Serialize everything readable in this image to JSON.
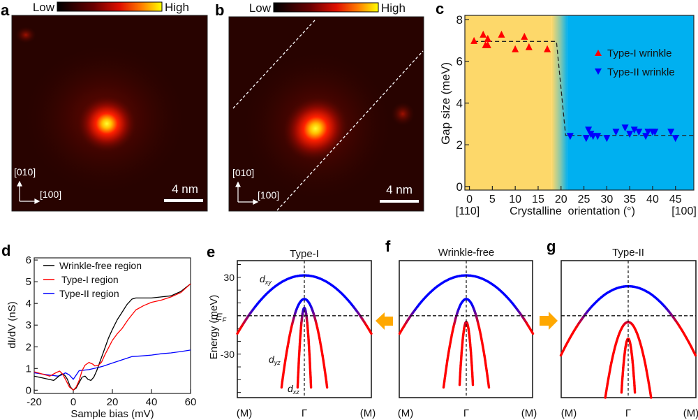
{
  "panels": {
    "a": {
      "letter": "a",
      "colorbar_low": "Low",
      "colorbar_high": "High",
      "axis_y": "[010]",
      "axis_x": "[100]",
      "scale_bar": "4 nm"
    },
    "b": {
      "letter": "b",
      "colorbar_low": "Low",
      "colorbar_high": "High",
      "axis_y": "[010]",
      "axis_x": "[100]",
      "scale_bar": "4 nm"
    },
    "c": {
      "letter": "c",
      "x_left_label": "[110]",
      "x_right_label": "[100]"
    },
    "d": {
      "letter": "d"
    },
    "e": {
      "letter": "e",
      "title": "Type-I",
      "ylabel": "Energy (meV)",
      "ef_label": "E",
      "ef_sub": "F",
      "ytick_top": "30",
      "ytick_bottom": "-30",
      "band_labels": {
        "dxy": "d",
        "dxy_sub": "xy",
        "dyz": "d",
        "dyz_sub": "yz",
        "dxz": "d",
        "dxz_sub": "xz"
      },
      "x_labels": [
        "(M)",
        "Γ",
        "(M)"
      ]
    },
    "f": {
      "letter": "f",
      "title": "Wrinkle-free",
      "x_labels": [
        "(M)",
        "Γ",
        "(M)"
      ]
    },
    "g": {
      "letter": "g",
      "title": "Type-II",
      "x_labels": [
        "(M)",
        "Γ",
        "(M)"
      ]
    }
  },
  "colors": {
    "type1": "#ff0000",
    "type2": "#0000ff",
    "wrinkle_free": "#000000",
    "region_type1_bg": "#fdd86a",
    "region_type2_bg": "#00b0f0",
    "arrow": "#ffa800",
    "band_hole": "#0000ff",
    "band_electron": "#ff0000"
  },
  "chart_data": [
    {
      "id": "c",
      "type": "scatter",
      "title": "",
      "xlabel": "Crystalline  orientation (°)",
      "ylabel": "Gap size (meV)",
      "xlim": [
        -1,
        49
      ],
      "ylim": [
        -0.17,
        8.2
      ],
      "xticks": [
        0,
        5,
        10,
        15,
        20,
        25,
        30,
        35,
        40,
        45
      ],
      "yticks": [
        0,
        2,
        4,
        6,
        8
      ],
      "background_regions": [
        {
          "name": "Type-I region",
          "from": -1,
          "to": 18
        },
        {
          "name": "Type-II region",
          "from": 21.5,
          "to": 49
        }
      ],
      "legend_position": "upper-right",
      "series": [
        {
          "name": "Type-I wrinkle",
          "marker": "triangle-up",
          "x": [
            1,
            3,
            3.5,
            4,
            4,
            7,
            10,
            12,
            13,
            17
          ],
          "y": [
            7.0,
            7.3,
            6.8,
            7.1,
            6.8,
            7.3,
            6.6,
            7.2,
            6.7,
            6.6
          ]
        },
        {
          "name": "Type-II wrinkle",
          "marker": "triangle-down",
          "x": [
            22,
            25.5,
            26,
            26.5,
            27,
            28,
            30,
            32,
            34,
            35,
            36,
            37,
            38.5,
            39,
            40,
            40.5,
            44,
            45
          ],
          "y": [
            2.4,
            2.3,
            2.7,
            2.5,
            2.4,
            2.4,
            2.3,
            2.6,
            2.8,
            2.5,
            2.7,
            2.6,
            2.4,
            2.6,
            2.6,
            2.6,
            2.6,
            2.3
          ]
        },
        {
          "name": "step-fit",
          "style": "dashed",
          "x": [
            1,
            19,
            21,
            49
          ],
          "y": [
            6.95,
            6.95,
            2.45,
            2.45
          ]
        }
      ]
    },
    {
      "id": "d",
      "type": "line",
      "title": "",
      "xlabel": "Sample bias (mV)",
      "ylabel": "dI/dV (nS)",
      "xlim": [
        -20,
        60
      ],
      "ylim": [
        -0.15,
        6.1
      ],
      "xticks": [
        -20,
        0,
        20,
        40,
        60
      ],
      "yticks": [
        0,
        1,
        2,
        3,
        4,
        5,
        6
      ],
      "legend_position": "upper-left",
      "series": [
        {
          "name": "Wrinkle-free region",
          "x": [
            -20,
            -15,
            -10,
            -8,
            -6,
            -4.5,
            -3,
            -1.5,
            0,
            1.5,
            3,
            4.5,
            6,
            7.5,
            9,
            10.5,
            12,
            14,
            16,
            18,
            20,
            22.5,
            25,
            27.5,
            30,
            32,
            35,
            40,
            45,
            50,
            55,
            60
          ],
          "y": [
            0.65,
            0.55,
            0.45,
            0.6,
            0.75,
            0.7,
            0.5,
            0.15,
            0.0,
            0.1,
            0.35,
            0.6,
            0.65,
            0.5,
            0.45,
            0.6,
            0.9,
            1.4,
            1.9,
            2.4,
            2.8,
            3.25,
            3.6,
            3.95,
            4.2,
            4.25,
            4.25,
            4.25,
            4.3,
            4.35,
            4.55,
            4.9
          ]
        },
        {
          "name": "Type-I region",
          "x": [
            -20,
            -16,
            -12,
            -9,
            -7,
            -5.5,
            -4,
            -2,
            0,
            1.5,
            3,
            4.5,
            6,
            8,
            10,
            11,
            13,
            14.5,
            16,
            18,
            20,
            22.5,
            25,
            28,
            32,
            36,
            40,
            45,
            50,
            55,
            60
          ],
          "y": [
            0.85,
            0.75,
            0.65,
            0.8,
            0.88,
            0.75,
            0.5,
            0.15,
            0.0,
            0.15,
            0.45,
            0.9,
            1.15,
            1.28,
            1.2,
            1.12,
            1.15,
            1.3,
            1.6,
            1.95,
            2.3,
            2.6,
            2.85,
            3.25,
            3.7,
            3.9,
            4.05,
            4.15,
            4.3,
            4.5,
            4.9
          ]
        },
        {
          "name": "Type-II region",
          "x": [
            -20,
            -14,
            -8,
            -6,
            -4,
            -2,
            0,
            1.5,
            3,
            5,
            8,
            12,
            15,
            20,
            25,
            30,
            35,
            40,
            45,
            50,
            55,
            60
          ],
          "y": [
            0.8,
            0.72,
            0.65,
            0.7,
            0.8,
            0.7,
            0.5,
            0.7,
            0.9,
            0.92,
            0.95,
            1.03,
            1.1,
            1.25,
            1.4,
            1.55,
            1.58,
            1.62,
            1.68,
            1.72,
            1.78,
            1.85
          ]
        }
      ]
    },
    {
      "id": "e",
      "type": "line",
      "title": "Type-I",
      "xlabel": "",
      "ylabel": "Energy (meV)",
      "ylim": [
        -64,
        43
      ],
      "fermi_level_meV": 0,
      "bands": [
        {
          "name": "dxy",
          "apex_meV": 31.5,
          "edge_meV": -14,
          "half_width_k": 1.0
        },
        {
          "name": "dyz",
          "apex_meV": 13,
          "bottom_meV": -56,
          "half_width_k_at_bottom": 0.34
        },
        {
          "name": "dxz",
          "apex_meV": 6,
          "bottom_meV": -56,
          "half_width_k_at_bottom": 0.1
        }
      ]
    },
    {
      "id": "f",
      "type": "line",
      "title": "Wrinkle-free",
      "ylim": [
        -64,
        43
      ],
      "fermi_level_meV": 0,
      "bands": [
        {
          "name": "dxy",
          "apex_meV": 31.5,
          "edge_meV": -14,
          "half_width_k": 1.0
        },
        {
          "name": "dyz",
          "apex_meV": 13,
          "bottom_meV": -56,
          "half_width_k_at_bottom": 0.34
        },
        {
          "name": "dxz",
          "apex_meV": -5,
          "bottom_meV": -54,
          "half_width_k_at_bottom": 0.1
        }
      ]
    },
    {
      "id": "g",
      "type": "line",
      "title": "Type-II",
      "ylim": [
        -64,
        43
      ],
      "fermi_level_meV": 0,
      "bands": [
        {
          "name": "dxy",
          "apex_meV": 23,
          "edge_meV": -31,
          "half_width_k": 1.0
        },
        {
          "name": "dyz",
          "apex_meV": -5,
          "bottom_meV": -64,
          "half_width_k_at_bottom": 0.34
        },
        {
          "name": "dxz",
          "apex_meV": -18,
          "bottom_meV": -60,
          "half_width_k_at_bottom": 0.1
        }
      ]
    }
  ]
}
